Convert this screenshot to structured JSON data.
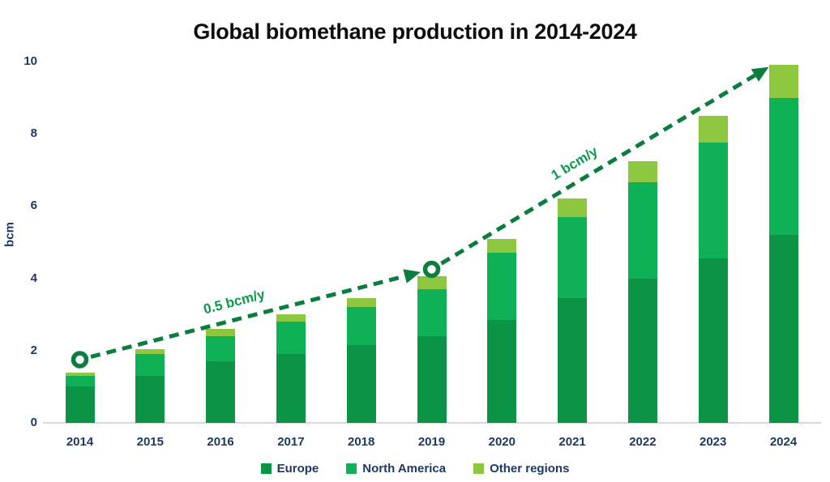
{
  "title": "Global biomethane production in 2014-2024",
  "chart_data": {
    "type": "bar",
    "stacked": true,
    "title": "Global biomethane production in 2014-2024",
    "categories": [
      "2014",
      "2015",
      "2016",
      "2017",
      "2018",
      "2019",
      "2020",
      "2021",
      "2022",
      "2023",
      "2024"
    ],
    "series": [
      {
        "name": "Europe",
        "color": "#0b9346",
        "values": [
          1.0,
          1.3,
          1.7,
          1.9,
          2.15,
          2.4,
          2.85,
          3.45,
          4.0,
          4.55,
          5.2
        ]
      },
      {
        "name": "North America",
        "color": "#0fb156",
        "values": [
          0.3,
          0.6,
          0.7,
          0.9,
          1.05,
          1.3,
          1.85,
          2.25,
          2.65,
          3.2,
          3.8
        ]
      },
      {
        "name": "Other regions",
        "color": "#8dc63f",
        "values": [
          0.1,
          0.15,
          0.2,
          0.2,
          0.25,
          0.35,
          0.4,
          0.5,
          0.6,
          0.75,
          0.9
        ]
      }
    ],
    "totals": [
      1.4,
      2.05,
      2.6,
      3.0,
      3.45,
      4.05,
      5.1,
      6.2,
      7.25,
      8.5,
      9.9
    ],
    "xlabel": "",
    "ylabel": "bcm",
    "ylim": [
      0,
      10
    ],
    "yticks": [
      0,
      2,
      4,
      6,
      8,
      10
    ],
    "grid": false,
    "legend_position": "bottom",
    "annotations": {
      "line_color": "#0b7d3e",
      "label_color": "#0c9a4a",
      "segments": [
        {
          "label": "0.5 bcm/y",
          "from": {
            "year": "2014",
            "value": 1.75,
            "marker": "circle"
          },
          "to": {
            "year": "2019",
            "value": 4.25,
            "marker": "circle"
          }
        },
        {
          "label": "1 bcm/y",
          "from": {
            "year": "2019",
            "value": 4.25,
            "marker": "circle"
          },
          "to": {
            "year": "2024",
            "value": 9.85,
            "dx": -18
          },
          "end_arrow": true
        }
      ]
    }
  },
  "colors": {
    "axis_text": "#1f3864",
    "axis_line": "#d9d9d9",
    "title_text": "#0d0d0d"
  }
}
